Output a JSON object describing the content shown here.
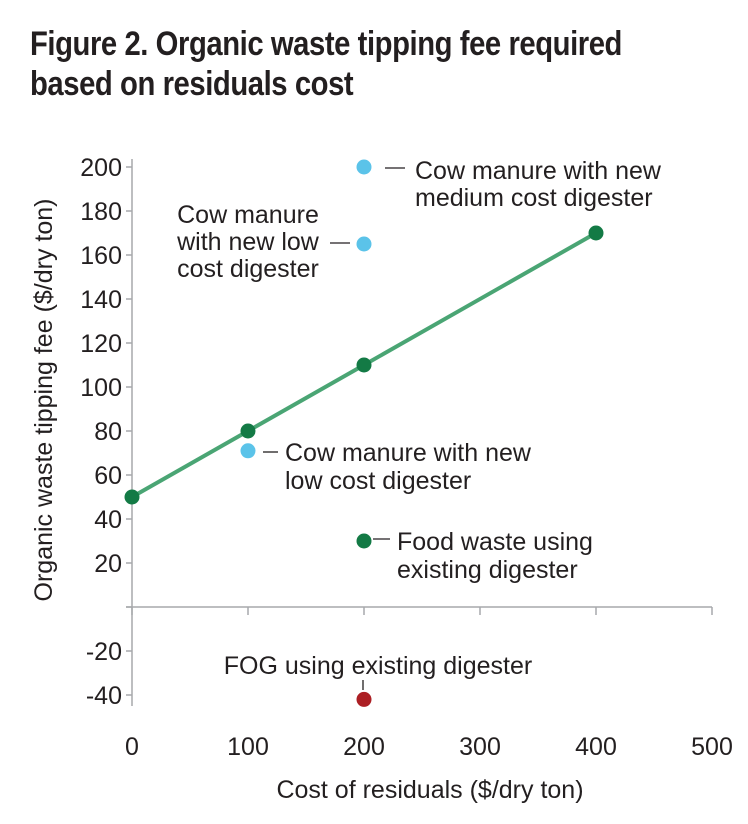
{
  "chart_data": {
    "type": "scatter",
    "title": "Figure 2. Organic waste tipping fee required based on residuals cost",
    "xlabel": "Cost of residuals ($/dry ton)",
    "ylabel": "Organic waste tipping fee ($/dry ton)",
    "xlim": [
      0,
      500
    ],
    "ylim": [
      -45,
      200
    ],
    "xticks": [
      0,
      100,
      200,
      300,
      400,
      500
    ],
    "xtick_labels": [
      "0",
      "100",
      "200",
      "300",
      "400",
      "500"
    ],
    "yticks": [
      -40,
      -20,
      0,
      20,
      40,
      60,
      80,
      100,
      120,
      140,
      160,
      180,
      200
    ],
    "ytick_labels": [
      "-40",
      "-20",
      "",
      "20",
      "40",
      "60",
      "80",
      "100",
      "120",
      "140",
      "160",
      "180",
      "200"
    ],
    "grid": false,
    "line": {
      "x": [
        0,
        100,
        200,
        400
      ],
      "y": [
        50,
        80,
        110,
        170
      ],
      "color": "#4aa574"
    },
    "points": [
      {
        "x": 0,
        "y": 50,
        "color": "#137a45"
      },
      {
        "x": 100,
        "y": 80,
        "color": "#137a45"
      },
      {
        "x": 200,
        "y": 110,
        "color": "#137a45"
      },
      {
        "x": 400,
        "y": 170,
        "color": "#137a45"
      },
      {
        "x": 200,
        "y": 200,
        "color": "#5bc3e9",
        "label": "Cow manure with new medium cost digester"
      },
      {
        "x": 200,
        "y": 165,
        "color": "#5bc3e9",
        "label": "Cow manure with new low cost digester"
      },
      {
        "x": 100,
        "y": 71,
        "color": "#5bc3e9",
        "label": "Cow manure with new low cost digester"
      },
      {
        "x": 200,
        "y": 30,
        "color": "#137a45",
        "label": "Food waste using existing digester"
      },
      {
        "x": 200,
        "y": -42,
        "color": "#ac1f24",
        "label": "FOG using existing digester"
      }
    ],
    "annotations": [
      {
        "lines": [
          "Cow manure with new",
          "medium cost digester"
        ]
      },
      {
        "lines": [
          "Cow manure",
          "with new low",
          "cost digester"
        ]
      },
      {
        "lines": [
          "Cow manure with new",
          "low cost digester"
        ]
      },
      {
        "lines": [
          "Food waste using",
          "existing digester"
        ]
      },
      {
        "lines": [
          "FOG using existing digester"
        ]
      }
    ]
  }
}
